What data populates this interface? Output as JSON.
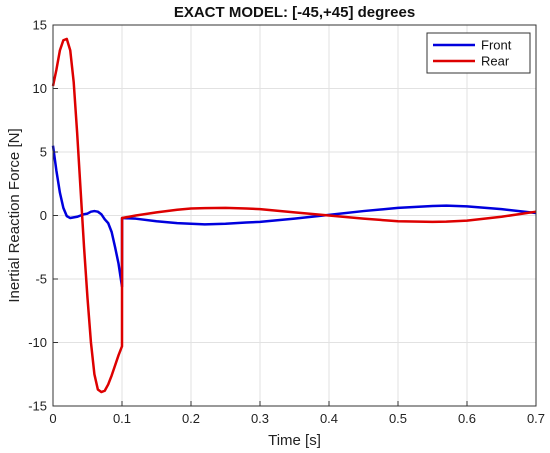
{
  "chart_data": {
    "type": "line",
    "title": "EXACT MODEL: [-45,+45] degrees",
    "xlabel": "Time [s]",
    "ylabel": "Inertial Reaction Force [N]",
    "xlim": [
      0,
      0.7
    ],
    "ylim": [
      -15,
      15
    ],
    "x_ticks": [
      0,
      0.1,
      0.2,
      0.3,
      0.4,
      0.5,
      0.6,
      0.7
    ],
    "x_tick_labels": [
      "0",
      "0.1",
      "0.2",
      "0.3",
      "0.4",
      "0.5",
      "0.6",
      "0.7"
    ],
    "y_ticks": [
      -15,
      -10,
      -5,
      0,
      5,
      10,
      15
    ],
    "y_tick_labels": [
      "-15",
      "-10",
      "-5",
      "0",
      "5",
      "10",
      "15"
    ],
    "grid": true,
    "legend_position": "top-right",
    "series": [
      {
        "name": "Front",
        "color": "#0000dd",
        "x": [
          0,
          0.005,
          0.01,
          0.015,
          0.02,
          0.025,
          0.03,
          0.035,
          0.04,
          0.045,
          0.05,
          0.055,
          0.06,
          0.065,
          0.07,
          0.075,
          0.08,
          0.085,
          0.09,
          0.095,
          0.1,
          0.1001,
          0.12,
          0.15,
          0.18,
          0.2,
          0.22,
          0.25,
          0.28,
          0.3,
          0.35,
          0.4,
          0.45,
          0.5,
          0.55,
          0.57,
          0.6,
          0.65,
          0.7
        ],
        "y": [
          5.5,
          3.5,
          1.8,
          0.6,
          -0.05,
          -0.2,
          -0.15,
          -0.1,
          0.0,
          0.1,
          0.15,
          0.3,
          0.35,
          0.3,
          0.1,
          -0.3,
          -0.6,
          -1.3,
          -2.5,
          -3.8,
          -5.6,
          -0.2,
          -0.25,
          -0.45,
          -0.6,
          -0.65,
          -0.7,
          -0.65,
          -0.55,
          -0.5,
          -0.25,
          0.05,
          0.35,
          0.6,
          0.75,
          0.78,
          0.72,
          0.5,
          0.2
        ]
      },
      {
        "name": "Rear",
        "color": "#dd0000",
        "x": [
          0,
          0.005,
          0.01,
          0.015,
          0.02,
          0.025,
          0.03,
          0.035,
          0.04,
          0.045,
          0.05,
          0.055,
          0.06,
          0.065,
          0.07,
          0.075,
          0.08,
          0.085,
          0.09,
          0.095,
          0.1,
          0.1001,
          0.12,
          0.15,
          0.18,
          0.2,
          0.22,
          0.25,
          0.28,
          0.3,
          0.35,
          0.4,
          0.45,
          0.5,
          0.55,
          0.57,
          0.6,
          0.65,
          0.7
        ],
        "y": [
          10.2,
          11.5,
          13.0,
          13.8,
          13.9,
          13.0,
          10.5,
          6.5,
          2.0,
          -2.5,
          -6.5,
          -10.0,
          -12.5,
          -13.7,
          -13.9,
          -13.8,
          -13.3,
          -12.6,
          -11.8,
          -11.0,
          -10.3,
          -0.2,
          0.0,
          0.25,
          0.45,
          0.55,
          0.58,
          0.6,
          0.55,
          0.5,
          0.25,
          0.0,
          -0.25,
          -0.45,
          -0.5,
          -0.48,
          -0.4,
          -0.1,
          0.3
        ]
      }
    ]
  }
}
